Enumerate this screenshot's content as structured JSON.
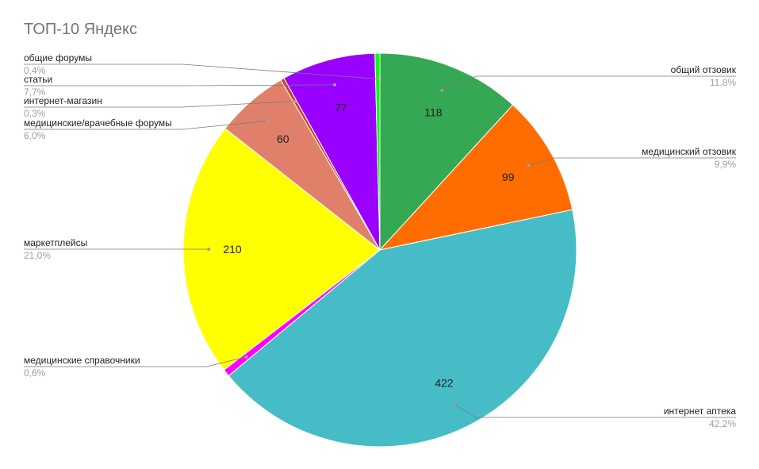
{
  "chart_data": {
    "type": "pie",
    "title": "ТОП-10 Яндекс",
    "slices": [
      {
        "name": "общий отзовик",
        "value": 118,
        "value_label": "118",
        "percent_label": "11,8%",
        "color": "#34a853"
      },
      {
        "name": "медицинский отзовик",
        "value": 99,
        "value_label": "99",
        "percent_label": "9,9%",
        "color": "#ff6d00"
      },
      {
        "name": "интернет аптека",
        "value": 422,
        "value_label": "422",
        "percent_label": "42,2%",
        "color": "#46bdc6"
      },
      {
        "name": "медицинские справочники",
        "value": 6,
        "value_label": "",
        "percent_label": "0,6%",
        "color": "#ff00ff"
      },
      {
        "name": "маркетплейсы",
        "value": 210,
        "value_label": "210",
        "percent_label": "21,0%",
        "color": "#ffff00"
      },
      {
        "name": "медицинские/врачебные форумы",
        "value": 60,
        "value_label": "60",
        "percent_label": "6,0%",
        "color": "#e0806b"
      },
      {
        "name": "интернет-магазин",
        "value": 3,
        "value_label": "",
        "percent_label": "0,3%",
        "color": "#cc4125"
      },
      {
        "name": "статьи",
        "value": 77,
        "value_label": "77",
        "percent_label": "7,7%",
        "color": "#9900ff"
      },
      {
        "name": "общие форумы",
        "value": 4,
        "value_label": "",
        "percent_label": "0,4%",
        "color": "#00ff00"
      }
    ]
  }
}
